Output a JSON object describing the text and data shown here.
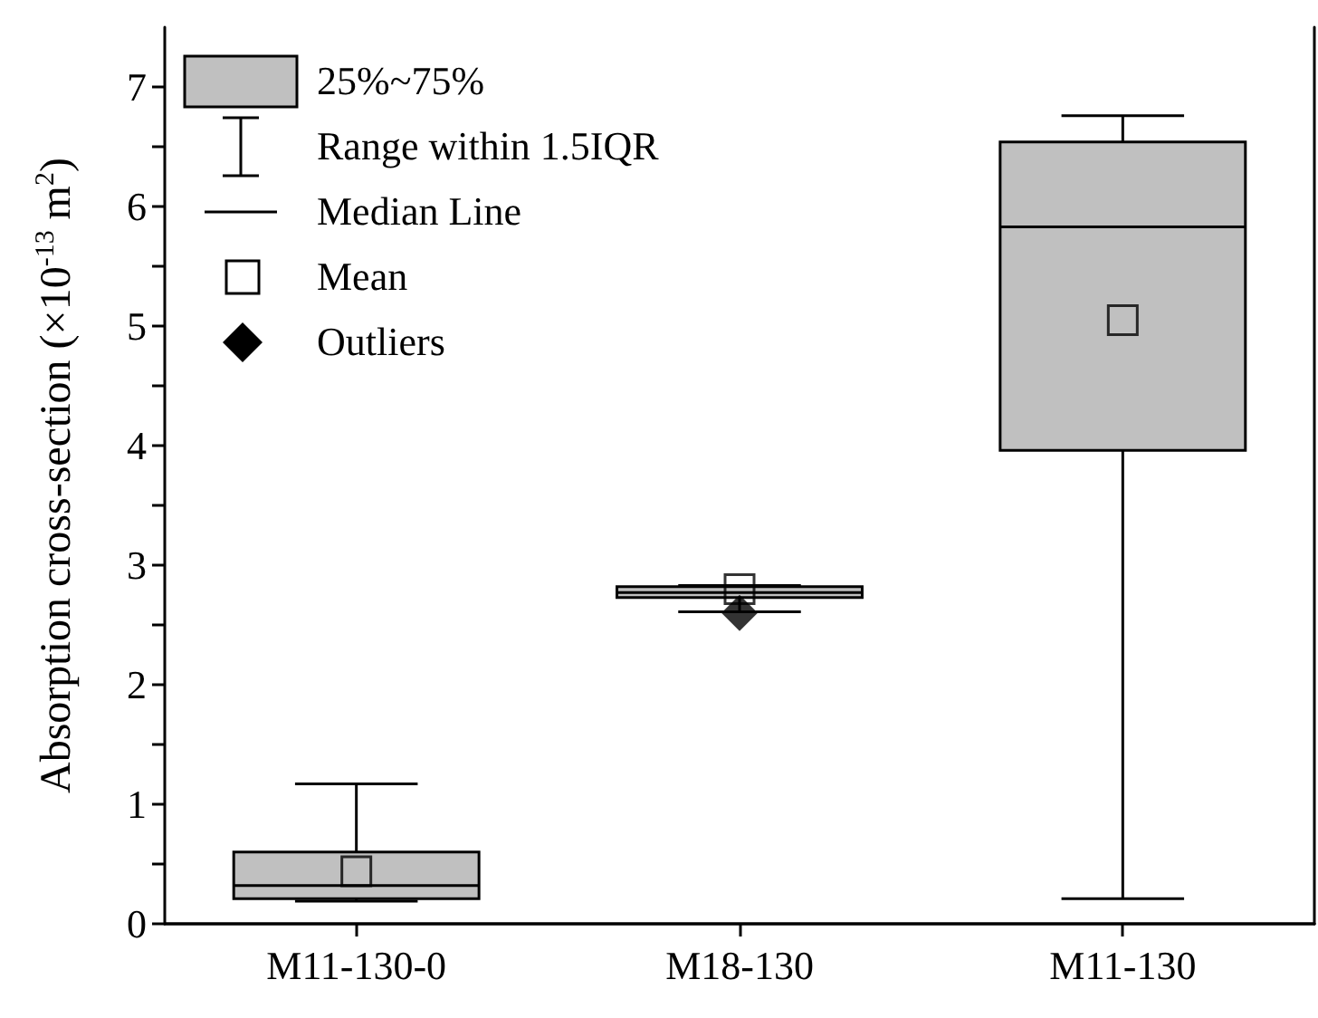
{
  "chart_data": {
    "type": "box",
    "ylabel": "Absorption cross-section (×10$^{-13}$ m$^{2}$)",
    "categories": [
      "M11-130-0",
      "M18-130",
      "M11-130"
    ],
    "series": [
      {
        "name": "25%~75%",
        "color": "#c0c0c0",
        "boxes": [
          {
            "low": 0.19,
            "q1": 0.21,
            "median": 0.32,
            "q3": 0.6,
            "high": 1.17,
            "mean": 0.44
          },
          {
            "low": 2.61,
            "q1": 2.73,
            "median": 2.77,
            "q3": 2.82,
            "high": 2.83,
            "mean": 2.8,
            "outliers": [
              2.6
            ]
          },
          {
            "low": 0.21,
            "q1": 3.96,
            "median": 5.83,
            "q3": 6.54,
            "high": 6.76,
            "mean": 5.05
          }
        ]
      }
    ],
    "annotations": [
      "Range within 1.5IQR",
      "Median Line",
      "Mean",
      "Outliers"
    ],
    "ylim": [
      0,
      7.5
    ],
    "yticks": [
      0,
      1,
      2,
      3,
      4,
      5,
      6,
      7
    ],
    "legend": "top left",
    "grid": false
  }
}
